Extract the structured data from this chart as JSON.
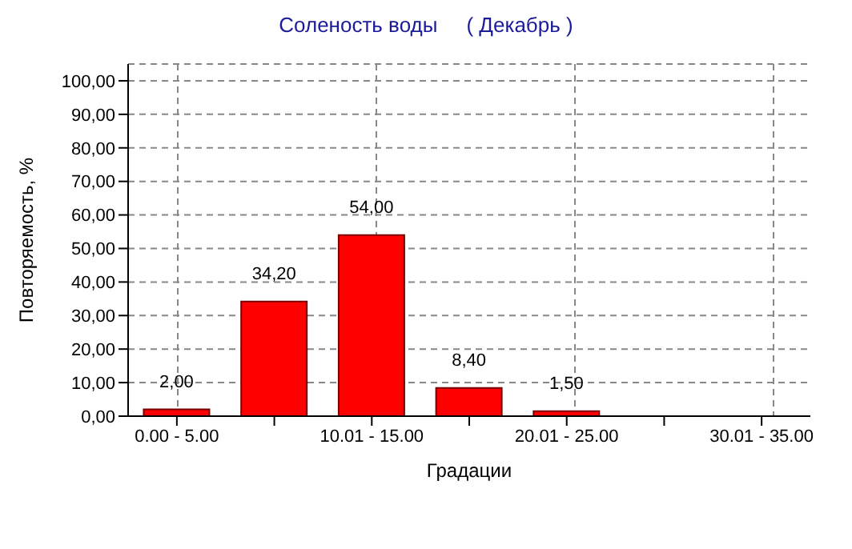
{
  "chart_data": {
    "type": "bar",
    "title": "Соленость воды     ( Декабрь )",
    "xlabel": "Градации",
    "ylabel": "Повторяемость, %",
    "categories": [
      "0.00 - 5.00",
      null,
      "10.01 - 15.00",
      null,
      "20.01 - 25.00",
      null,
      "30.01 - 35.00"
    ],
    "values": [
      2,
      34.2,
      54,
      8.4,
      1.5,
      0,
      0
    ],
    "color": "#ff0000",
    "value_labels": [
      "2,00",
      "34,20",
      "54,00",
      "8,40",
      "1,50",
      null,
      null
    ],
    "ylim": [
      0,
      105
    ],
    "yticks": [
      {
        "value": 0,
        "label": "0,00"
      },
      {
        "value": 10,
        "label": "10,00"
      },
      {
        "value": 20,
        "label": "20,00"
      },
      {
        "value": 30,
        "label": "30,00"
      },
      {
        "value": 40,
        "label": "40,00"
      },
      {
        "value": 50,
        "label": "50,00"
      },
      {
        "value": 60,
        "label": "60,00"
      },
      {
        "value": 70,
        "label": "70,00"
      },
      {
        "value": 80,
        "label": "80,00"
      },
      {
        "value": 90,
        "label": "90,00"
      },
      {
        "value": 100,
        "label": "100,00"
      }
    ],
    "grid": true
  }
}
